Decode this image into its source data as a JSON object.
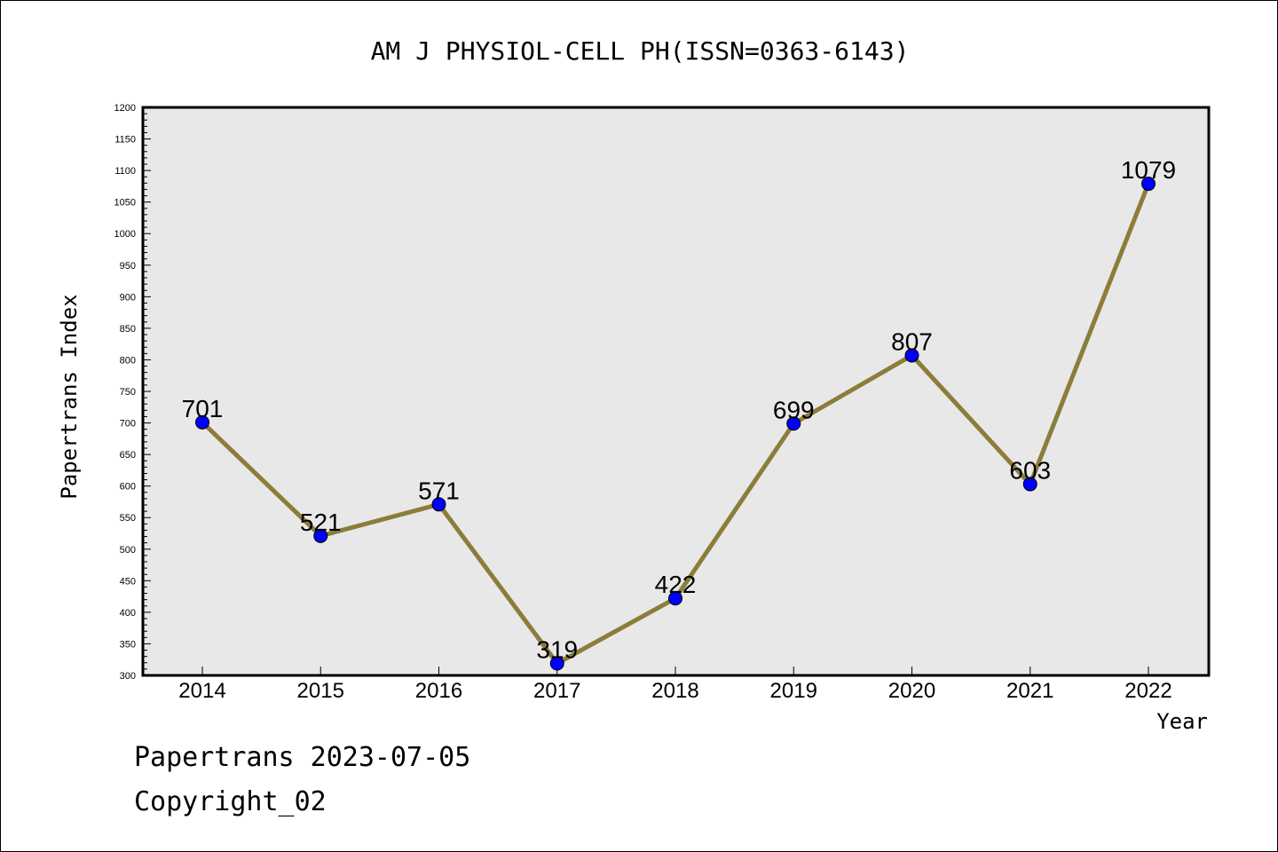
{
  "chart_data": {
    "type": "line",
    "title": "AM J PHYSIOL-CELL PH(ISSN=0363-6143)",
    "xlabel": "Year",
    "ylabel": "Papertrans Index",
    "categories": [
      "2014",
      "2015",
      "2016",
      "2017",
      "2018",
      "2019",
      "2020",
      "2021",
      "2022"
    ],
    "values": [
      701,
      521,
      571,
      319,
      422,
      699,
      807,
      603,
      1079
    ],
    "data_labels": [
      "701",
      "521",
      "571",
      "319",
      "422",
      "699",
      "807",
      "603",
      "1079"
    ],
    "ylim": [
      300,
      1200
    ],
    "yticks": [
      "300",
      "350",
      "400",
      "450",
      "500",
      "550",
      "600",
      "650",
      "700",
      "750",
      "800",
      "850",
      "900",
      "950",
      "1000",
      "1050",
      "1100",
      "1150",
      "1200"
    ],
    "grid": false,
    "legend": "none",
    "colors": {
      "line": "#8b7d3a",
      "marker": "#0000ff",
      "plot_background": "#e8e8e8"
    }
  },
  "footer": {
    "date_text": "Papertrans 2023-07-05",
    "copyright_text": "Copyright_02"
  }
}
